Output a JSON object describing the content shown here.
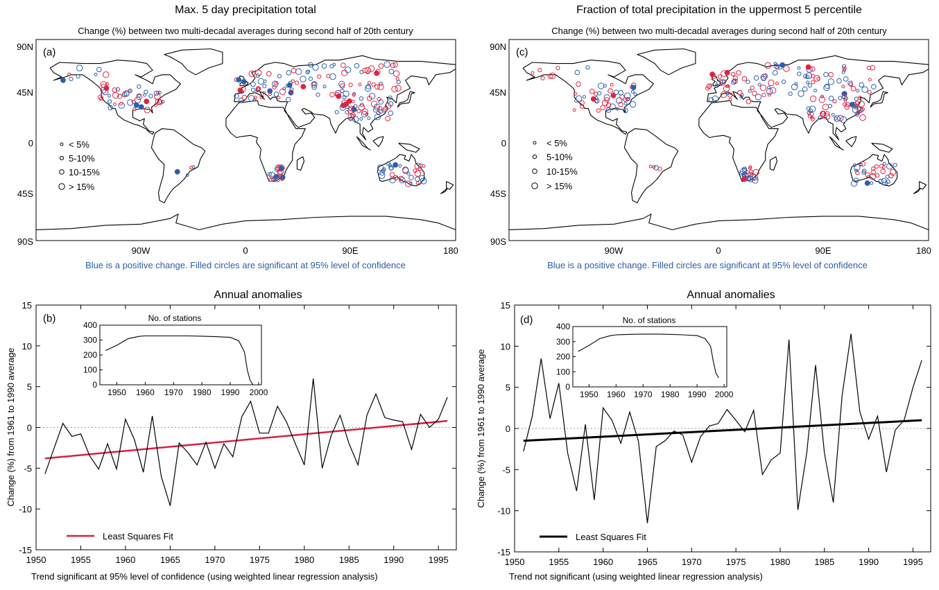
{
  "colors": {
    "positive": "#2b5fad",
    "negative": "#e3223c",
    "fit_left": "#d6213f",
    "fit_right": "#000000",
    "note": "#2a5ea8"
  },
  "maps": [
    {
      "panel": "(a)",
      "title": "Max. 5 day precipitation total",
      "subtitle": "Change (%) between two multi-decadal averages during second half of 20th century",
      "lat_ticks": [
        "90N",
        "45N",
        "0",
        "45S",
        "90S"
      ],
      "lon_ticks": [
        "90W",
        "0",
        "90E",
        "180"
      ],
      "legend": [
        "< 5%",
        "5-10%",
        "10-15%",
        "> 15%"
      ],
      "note": "Blue is a positive change. Filled circles are significant at 95% level of confidence"
    },
    {
      "panel": "(c)",
      "title": "Fraction of total precipitation in the uppermost 5 percentile",
      "subtitle": "Change (%) between two multi-decadal averages during second half of 20th century",
      "lat_ticks": [
        "90N",
        "45N",
        "0",
        "45S",
        "90S"
      ],
      "lon_ticks": [
        "90W",
        "0",
        "90E",
        "180"
      ],
      "legend": [
        "< 5%",
        "5-10%",
        "10-15%",
        "> 15%"
      ],
      "note": "Blue is a positive change. Filled circles are significant at 95% level of confidence"
    }
  ],
  "chart_data": [
    {
      "type": "line",
      "panel": "(b)",
      "title": "Annual anomalies",
      "ylabel": "Change (%) from 1961 to 1990 average",
      "xlim": [
        1950,
        1997
      ],
      "ylim": [
        -15,
        15
      ],
      "xticks": [
        1950,
        1955,
        1960,
        1965,
        1970,
        1975,
        1980,
        1985,
        1990,
        1995
      ],
      "yticks": [
        15,
        10,
        5,
        0,
        -5,
        -10,
        -15
      ],
      "footnote": "Trend significant at 95% level of confidence (using weighted linear regression analysis)",
      "legend": "Least Squares Fit",
      "series": [
        {
          "x": [
            1951,
            1952,
            1953,
            1954,
            1955,
            1956,
            1957,
            1958,
            1959,
            1960,
            1961,
            1962,
            1963,
            1964,
            1965,
            1966,
            1967,
            1968,
            1969,
            1970,
            1971,
            1972,
            1973,
            1974,
            1975,
            1976,
            1977,
            1978,
            1979,
            1980,
            1981,
            1982,
            1983,
            1984,
            1985,
            1986,
            1987,
            1988,
            1989,
            1990,
            1991,
            1992,
            1993,
            1994,
            1995,
            1996
          ],
          "values": [
            -5.7,
            -2.6,
            0.5,
            -1.1,
            -0.8,
            -3.5,
            -5.1,
            -2.0,
            -5.1,
            1.0,
            -1.5,
            -5.5,
            1.4,
            -6.0,
            -9.6,
            -1.9,
            -3.1,
            -4.6,
            -1.8,
            -5.0,
            -2.0,
            -3.6,
            1.3,
            3.2,
            -0.7,
            -0.7,
            2.6,
            0.7,
            -2.0,
            -4.6,
            6.0,
            -5.0,
            -1.0,
            1.5,
            -2.0,
            -4.6,
            1.5,
            4.1,
            1.2,
            0.9,
            0.7,
            -2.7,
            1.6,
            0.0,
            1.0,
            3.7
          ]
        },
        {
          "name": "Least Squares Fit",
          "x": [
            1951,
            1996
          ],
          "values": [
            -3.8,
            0.8
          ]
        }
      ],
      "inset": {
        "title": "No. of stations",
        "xticks": [
          1950,
          1960,
          1970,
          1980,
          1990,
          2000
        ],
        "yticks": [
          400,
          300,
          200,
          100,
          0
        ],
        "ylim": [
          0,
          400
        ],
        "x": [
          1946,
          1950,
          1954,
          1958,
          1960,
          1965,
          1970,
          1975,
          1980,
          1985,
          1990,
          1993,
          1995,
          1996,
          1997,
          1998
        ],
        "values": [
          230,
          265,
          310,
          325,
          328,
          328,
          328,
          328,
          326,
          323,
          318,
          295,
          220,
          100,
          30,
          0
        ]
      }
    },
    {
      "type": "line",
      "panel": "(d)",
      "title": "Annual anomalies",
      "ylabel": "Change (%) from 1961 to 1990 average",
      "xlim": [
        1950,
        1997
      ],
      "ylim": [
        -15,
        15
      ],
      "xticks": [
        1950,
        1955,
        1960,
        1965,
        1970,
        1975,
        1980,
        1985,
        1990,
        1995
      ],
      "yticks": [
        15,
        10,
        5,
        0,
        -5,
        -10,
        -15
      ],
      "footnote": "Trend not significant (using weighted linear regression analysis)",
      "legend": "Least Squares Fit",
      "series": [
        {
          "x": [
            1951,
            1952,
            1953,
            1954,
            1955,
            1956,
            1957,
            1958,
            1959,
            1960,
            1961,
            1962,
            1963,
            1964,
            1965,
            1966,
            1967,
            1968,
            1969,
            1970,
            1971,
            1972,
            1973,
            1974,
            1975,
            1976,
            1977,
            1978,
            1979,
            1980,
            1981,
            1982,
            1983,
            1984,
            1985,
            1986,
            1987,
            1988,
            1989,
            1990,
            1991,
            1992,
            1993,
            1994,
            1995,
            1996
          ],
          "values": [
            -2.8,
            1.5,
            8.5,
            1.2,
            5.5,
            -3.0,
            -7.6,
            0.5,
            -8.7,
            2.5,
            1.0,
            -1.8,
            2.0,
            -1.6,
            -11.5,
            -2.2,
            -1.5,
            -0.3,
            -0.8,
            -4.1,
            -1.0,
            0.3,
            0.6,
            2.3,
            1.0,
            -0.4,
            2.2,
            -5.6,
            -3.8,
            -3.0,
            10.8,
            -9.9,
            -3.0,
            7.7,
            -3.0,
            -9.0,
            4.0,
            11.5,
            2.0,
            -1.3,
            1.5,
            -5.3,
            -0.2,
            1.0,
            5.0,
            8.3
          ]
        },
        {
          "name": "Least Squares Fit",
          "x": [
            1951,
            1996
          ],
          "values": [
            -1.5,
            1.0
          ]
        }
      ],
      "inset": {
        "title": "No. of stations",
        "xticks": [
          1950,
          1960,
          1970,
          1980,
          1990,
          2000
        ],
        "yticks": [
          400,
          300,
          200,
          100,
          0
        ],
        "ylim": [
          0,
          400
        ],
        "x": [
          1946,
          1950,
          1954,
          1958,
          1960,
          1965,
          1970,
          1975,
          1980,
          1985,
          1990,
          1993,
          1995,
          1996,
          1997,
          1998
        ],
        "values": [
          235,
          275,
          320,
          340,
          345,
          348,
          350,
          350,
          348,
          345,
          340,
          320,
          270,
          170,
          90,
          60
        ]
      }
    }
  ]
}
